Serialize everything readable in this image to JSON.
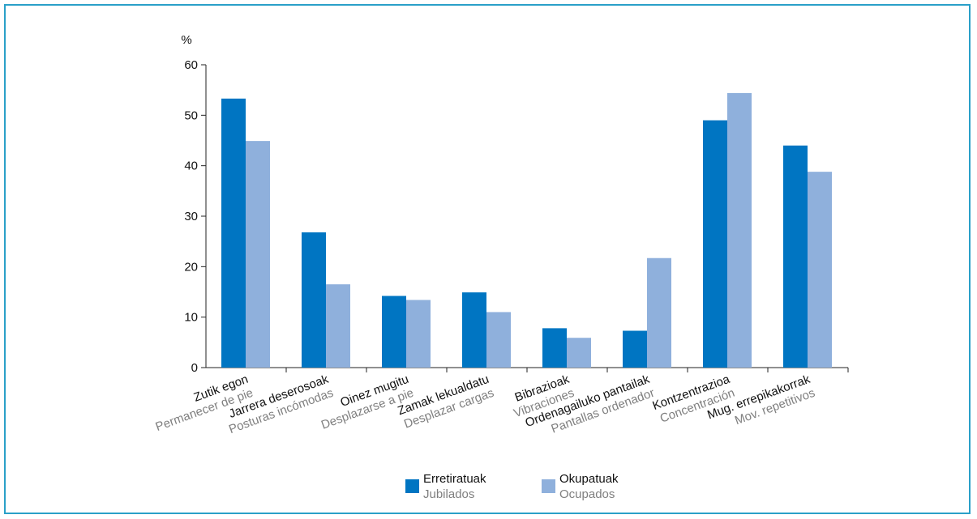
{
  "chart_data": {
    "type": "bar",
    "ylabel": "%",
    "ylim": [
      0,
      60
    ],
    "yticks": [
      0,
      10,
      20,
      30,
      40,
      50,
      60
    ],
    "grid": false,
    "legend_position": "bottom-center",
    "categories": [
      {
        "main": "Zutik egon",
        "sub": "Permanecer de pie"
      },
      {
        "main": "Jarrera deserosoak",
        "sub": "Posturas incómodas"
      },
      {
        "main": "Oinez mugitu",
        "sub": "Desplazarse a pie"
      },
      {
        "main": "Zamak lekualdatu",
        "sub": "Desplazar cargas"
      },
      {
        "main": "Bibrazioak",
        "sub": "Vibraciones"
      },
      {
        "main": "Ordenagailuko pantailak",
        "sub": "Pantallas ordenador"
      },
      {
        "main": "Kontzentrazioa",
        "sub": "Concentración"
      },
      {
        "main": "Mug. errepikakorrak",
        "sub": "Mov. repetitivos"
      }
    ],
    "series": [
      {
        "name": "Erretiratuak",
        "name_sub": "Jubilados",
        "color": "#0075c2",
        "values": [
          53.3,
          26.8,
          14.2,
          14.9,
          7.8,
          7.3,
          49.0,
          44.0
        ]
      },
      {
        "name": "Okupatuak",
        "name_sub": "Ocupados",
        "color": "#8fb0dc",
        "values": [
          44.9,
          16.5,
          13.4,
          11.0,
          5.9,
          21.7,
          54.4,
          38.8
        ]
      }
    ]
  }
}
